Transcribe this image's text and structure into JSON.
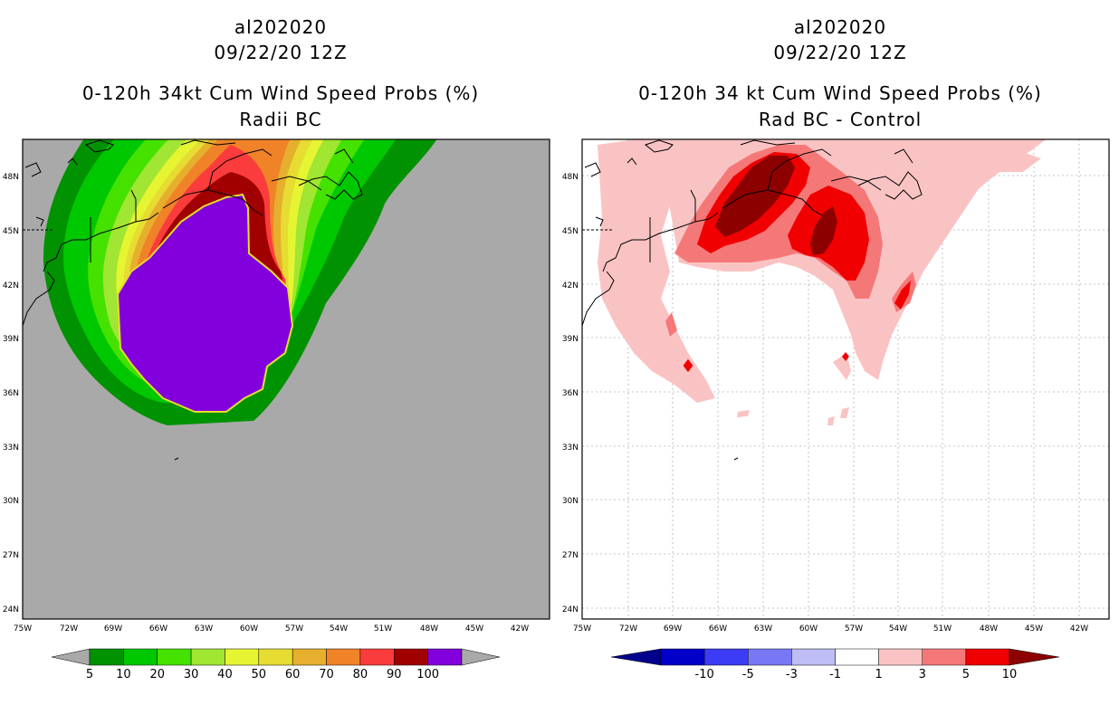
{
  "left": {
    "storm": "al202020",
    "datetime": "09/22/20 12Z",
    "product": "0-120h 34kt Cum Wind Speed Probs (%)",
    "subtitle": "Radii BC",
    "colorbar": {
      "labels": [
        "5",
        "10",
        "20",
        "30",
        "40",
        "50",
        "60",
        "70",
        "80",
        "90",
        "100"
      ],
      "colors": [
        "#009200",
        "#00c800",
        "#45e200",
        "#a0e632",
        "#e6f532",
        "#e6dc32",
        "#e6af2d",
        "#f08228",
        "#fa3c3c",
        "#a00000",
        "#8200dc"
      ],
      "under": "#a9a9a9",
      "over": "#a9a9a9"
    }
  },
  "right": {
    "storm": "al202020",
    "datetime": "09/22/20 12Z",
    "product": "0-120h 34 kt Cum Wind Speed Probs (%)",
    "subtitle": "Rad BC - Control",
    "colorbar": {
      "labels": [
        "-10",
        "-5",
        "-3",
        "-1",
        "1",
        "3",
        "5",
        "10"
      ],
      "colors": [
        "#0000c8",
        "#3c3cf5",
        "#7878f5",
        "#bebef5",
        "#ffffff",
        "#fac3c3",
        "#f57878",
        "#f00000"
      ],
      "under": "#00008c",
      "over": "#8c0000"
    }
  },
  "axes": {
    "lat_labels": [
      "48N",
      "45N",
      "42N",
      "39N",
      "36N",
      "33N",
      "30N",
      "27N",
      "24N"
    ],
    "lon_labels": [
      "75W",
      "72W",
      "69W",
      "66W",
      "63W",
      "60W",
      "57W",
      "54W",
      "51W",
      "48W",
      "45W",
      "42W"
    ]
  },
  "colors": {
    "ocean_gray": "#a9a9a9",
    "purple": "#8200dc",
    "dark_red": "#a00000",
    "red": "#f00000",
    "light_pink": "#fac3c3",
    "pink": "#f57878",
    "maroon": "#8c0000"
  }
}
